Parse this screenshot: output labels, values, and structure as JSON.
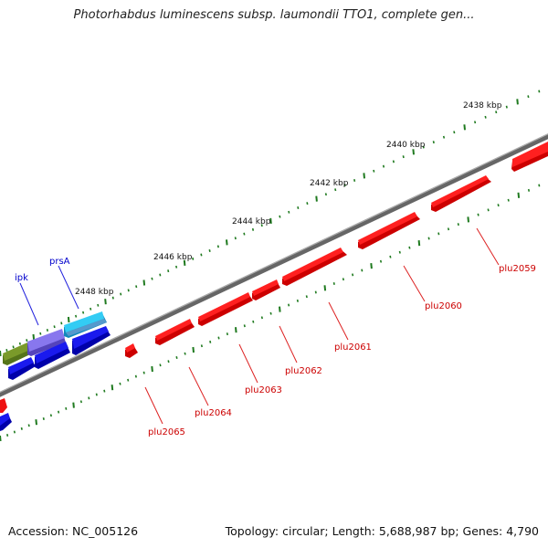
{
  "title": "Photorhabdus luminescens subsp. laumondii TTO1, complete gen...",
  "footer": {
    "accession": "Accession: NC_005126",
    "summary": "Topology: circular; Length: 5,688,987 bp; Genes: 4,790"
  },
  "colors": {
    "backbone": "#7a7a7a",
    "tick": "#1f7a1f",
    "red_gene": "#ee1111",
    "blue_gene": "#1111dd",
    "purple_gene": "#7766dd",
    "olive_gene": "#6b8e23",
    "cyan_gene": "#22bbee",
    "red_label": "#cc0000",
    "blue_label": "#0000cc"
  },
  "scale_labels": [
    "2438 kbp",
    "2440 kbp",
    "2442 kbp",
    "2444 kbp",
    "2446 kbp",
    "2448 kbp"
  ],
  "gene_labels": [
    {
      "text": "plu2059",
      "color": "red"
    },
    {
      "text": "plu2060",
      "color": "red"
    },
    {
      "text": "plu2061",
      "color": "red"
    },
    {
      "text": "plu2062",
      "color": "red"
    },
    {
      "text": "plu2063",
      "color": "red"
    },
    {
      "text": "plu2064",
      "color": "red"
    },
    {
      "text": "plu2065",
      "color": "red"
    },
    {
      "text": "prsA",
      "color": "blue"
    },
    {
      "text": "ipk",
      "color": "blue"
    }
  ]
}
